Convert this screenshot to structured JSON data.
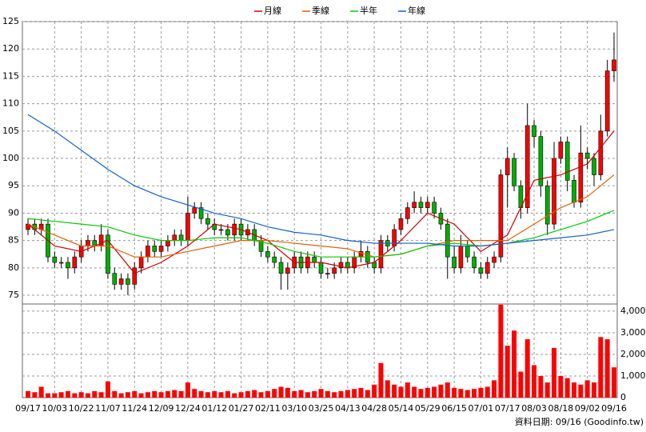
{
  "chart_data": [
    {
      "type": "candlestick",
      "categories": [
        "09/17",
        null,
        null,
        null,
        "10/03",
        null,
        null,
        null,
        "10/22",
        null,
        null,
        null,
        "11/07",
        null,
        null,
        null,
        "11/24",
        null,
        null,
        null,
        "12/09",
        null,
        null,
        null,
        "12/24",
        null,
        null,
        null,
        "01/12",
        null,
        null,
        null,
        "01/27",
        null,
        null,
        null,
        "02/11",
        null,
        null,
        null,
        "03/10",
        null,
        null,
        null,
        "03/25",
        null,
        null,
        null,
        "04/13",
        null,
        null,
        null,
        "04/28",
        null,
        null,
        null,
        "05/14",
        null,
        null,
        null,
        "05/29",
        null,
        null,
        null,
        "06/15",
        null,
        null,
        null,
        "07/01",
        null,
        null,
        null,
        "07/17",
        null,
        null,
        null,
        "08/03",
        null,
        null,
        null,
        "08/18",
        null,
        null,
        null,
        "09/02",
        null,
        null,
        null,
        "09/16"
      ],
      "open": [
        87,
        88,
        87,
        88,
        82,
        81,
        81,
        80,
        82,
        84,
        85,
        84,
        86,
        79,
        77,
        78,
        77,
        80,
        82,
        84,
        83,
        84,
        85,
        86,
        85,
        90,
        91,
        89,
        88,
        87,
        87,
        86,
        88,
        86,
        87,
        85,
        83,
        82,
        81,
        79,
        80,
        82,
        80,
        82,
        81,
        79,
        79,
        80,
        81,
        80,
        82,
        83,
        81,
        80,
        85,
        84,
        87,
        89,
        91,
        92,
        91,
        92,
        90,
        88,
        82,
        80,
        84,
        82,
        80,
        79,
        81,
        82,
        97,
        100,
        95,
        91,
        106,
        104,
        95,
        88,
        100,
        103,
        96,
        92,
        101,
        100,
        97,
        105,
        116
      ],
      "high": [
        89,
        89,
        89,
        89,
        83,
        82,
        82,
        83,
        85,
        86,
        86,
        88,
        87,
        80,
        79,
        79,
        81,
        83,
        85,
        85,
        85,
        86,
        87,
        87,
        93,
        92,
        92,
        90,
        89,
        88,
        88,
        89,
        89,
        88,
        88,
        86,
        84,
        83,
        82,
        81,
        83,
        83,
        83,
        83,
        82,
        80,
        81,
        82,
        82,
        83,
        85,
        84,
        82,
        86,
        86,
        88,
        90,
        92,
        94,
        93,
        93,
        93,
        91,
        89,
        84,
        86,
        85,
        83,
        81,
        82,
        83,
        98,
        102,
        101,
        96,
        110,
        107,
        105,
        96,
        103,
        104,
        104,
        97,
        106,
        102,
        101,
        108,
        118,
        123
      ],
      "low": [
        86,
        86,
        86,
        81,
        80,
        80,
        78,
        79,
        81,
        83,
        83,
        83,
        78,
        76,
        76,
        75,
        76,
        79,
        81,
        82,
        82,
        83,
        84,
        84,
        84,
        89,
        88,
        87,
        86,
        86,
        85,
        85,
        85,
        85,
        84,
        82,
        81,
        80,
        76,
        76,
        79,
        79,
        79,
        80,
        78,
        78,
        78,
        79,
        79,
        79,
        81,
        80,
        79,
        79,
        83,
        83,
        86,
        88,
        90,
        90,
        90,
        89,
        87,
        78,
        79,
        79,
        81,
        79,
        78,
        78,
        80,
        81,
        91,
        94,
        89,
        90,
        102,
        93,
        86,
        87,
        99,
        94,
        91,
        91,
        98,
        95,
        96,
        104,
        114
      ],
      "close": [
        88,
        87,
        88,
        82,
        81,
        81,
        80,
        82,
        84,
        85,
        84,
        86,
        79,
        77,
        78,
        77,
        80,
        82,
        84,
        83,
        84,
        85,
        86,
        85,
        90,
        91,
        89,
        88,
        87,
        87,
        86,
        88,
        86,
        87,
        85,
        83,
        82,
        81,
        79,
        80,
        82,
        80,
        82,
        81,
        79,
        79,
        80,
        81,
        80,
        82,
        83,
        81,
        80,
        85,
        84,
        87,
        89,
        91,
        92,
        91,
        92,
        90,
        88,
        82,
        80,
        84,
        82,
        80,
        79,
        81,
        82,
        97,
        100,
        95,
        91,
        106,
        104,
        95,
        88,
        100,
        103,
        96,
        92,
        101,
        100,
        97,
        105,
        116,
        118
      ],
      "up_color": "#ff0000",
      "down_color": "#00b000",
      "series": [
        {
          "name": "月線",
          "color": "#cc0000",
          "x": [
            0,
            4,
            8,
            12,
            16,
            20,
            24,
            28,
            32,
            36,
            40,
            44,
            48,
            52,
            56,
            60,
            64,
            68,
            72,
            76,
            80,
            84,
            88
          ],
          "values": [
            88,
            84,
            83,
            85,
            79,
            81,
            84,
            88,
            87,
            85,
            81,
            81,
            80,
            81,
            85,
            90,
            88,
            83,
            86,
            96,
            97,
            99,
            105
          ]
        },
        {
          "name": "季線",
          "color": "#e06000",
          "x": [
            0,
            4,
            8,
            12,
            16,
            20,
            24,
            28,
            32,
            36,
            40,
            44,
            48,
            52,
            56,
            60,
            64,
            68,
            72,
            76,
            80,
            84,
            88
          ],
          "values": [
            88,
            86,
            84,
            84,
            82,
            82,
            83,
            84,
            85,
            85,
            84.5,
            84,
            83.5,
            82,
            82.5,
            84,
            85,
            85,
            85,
            88,
            91,
            93,
            97
          ]
        },
        {
          "name": "半年",
          "color": "#00cc00",
          "x": [
            0,
            4,
            8,
            12,
            16,
            20,
            24,
            28,
            32,
            36,
            40,
            44,
            48,
            52,
            56,
            60,
            64,
            68,
            72,
            76,
            80,
            84,
            88
          ],
          "values": [
            89,
            88.5,
            88,
            87.5,
            86,
            85,
            85,
            85.5,
            85.5,
            84.5,
            83,
            82,
            82,
            82,
            82.5,
            84,
            84.5,
            84,
            84.5,
            85.5,
            87,
            88.5,
            90.5
          ]
        },
        {
          "name": "年線",
          "color": "#1060d0",
          "x": [
            0,
            4,
            8,
            12,
            16,
            20,
            24,
            28,
            32,
            36,
            40,
            44,
            48,
            52,
            56,
            60,
            64,
            68,
            72,
            76,
            80,
            84,
            88
          ],
          "values": [
            108,
            105,
            101.5,
            98,
            95,
            93,
            91.5,
            90,
            89,
            87.5,
            86.5,
            86,
            85,
            84.5,
            84.5,
            84.5,
            84,
            84,
            84.5,
            85,
            85.5,
            86,
            87
          ]
        }
      ],
      "ylim": [
        73.4,
        125
      ],
      "yticks": [
        75,
        80,
        85,
        90,
        95,
        100,
        105,
        110,
        115,
        120,
        125
      ],
      "grid": true,
      "legend": "top"
    },
    {
      "type": "bar",
      "values": [
        300,
        250,
        500,
        200,
        200,
        250,
        300,
        200,
        250,
        200,
        300,
        250,
        750,
        300,
        200,
        250,
        300,
        200,
        250,
        300,
        250,
        300,
        350,
        300,
        700,
        400,
        300,
        250,
        300,
        250,
        300,
        200,
        250,
        300,
        350,
        250,
        300,
        400,
        500,
        450,
        300,
        350,
        250,
        300,
        400,
        300,
        250,
        300,
        350,
        400,
        450,
        350,
        600,
        1600,
        800,
        600,
        500,
        700,
        500,
        400,
        450,
        500,
        600,
        700,
        450,
        400,
        350,
        400,
        450,
        500,
        800,
        4300,
        2400,
        3100,
        1200,
        2700,
        1500,
        1000,
        700,
        2300,
        1000,
        900,
        700,
        600,
        800,
        700,
        2800,
        2700,
        1400
      ],
      "color": "#ff0000",
      "ylim": [
        0,
        4330
      ],
      "yticks": [
        0,
        {
          "value": 1000,
          "label": "1,000"
        },
        {
          "value": 2000,
          "label": "2,000"
        },
        {
          "value": 3000,
          "label": "3,000"
        },
        {
          "value": 4000,
          "label": "4,000"
        }
      ],
      "grid": true
    }
  ],
  "footer": "資料日期: 09/16 (Goodinfo.tw)"
}
